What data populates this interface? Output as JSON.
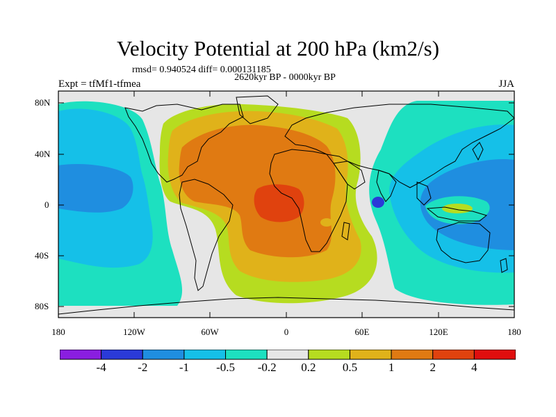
{
  "map": {
    "title": "Velocity Potential at 200 hPa (km2/s)",
    "stats": "rmsd= 0.940524 diff= 0.000131185",
    "subtitle": "2620kyr BP - 0000kyr BP",
    "left_label": "Expt = tfMf1-tfmea",
    "right_label": "JJA",
    "projection": "cylindrical-equidistant",
    "lon_range": [
      -180,
      180
    ],
    "lat_range": [
      -90,
      90
    ],
    "y_ticks": [
      "80N",
      "40N",
      "0",
      "40S",
      "80S"
    ],
    "x_ticks": [
      "180",
      "120W",
      "60W",
      "0",
      "60E",
      "120E",
      "180"
    ]
  },
  "colorbar": {
    "labels": [
      "-4",
      "-2",
      "-1",
      "-0.5",
      "-0.2",
      "0.2",
      "0.5",
      "1",
      "2",
      "4"
    ],
    "colors": [
      "#8a1ee0",
      "#2a3ad8",
      "#1f8ee0",
      "#15c0e8",
      "#1de0c0",
      "#e6e6e6",
      "#b6dc20",
      "#e0b21a",
      "#e07a12",
      "#e0420e",
      "#e00e0e"
    ]
  },
  "palette": {
    "neutral": "#e6e6e6",
    "coast": "#000000"
  }
}
